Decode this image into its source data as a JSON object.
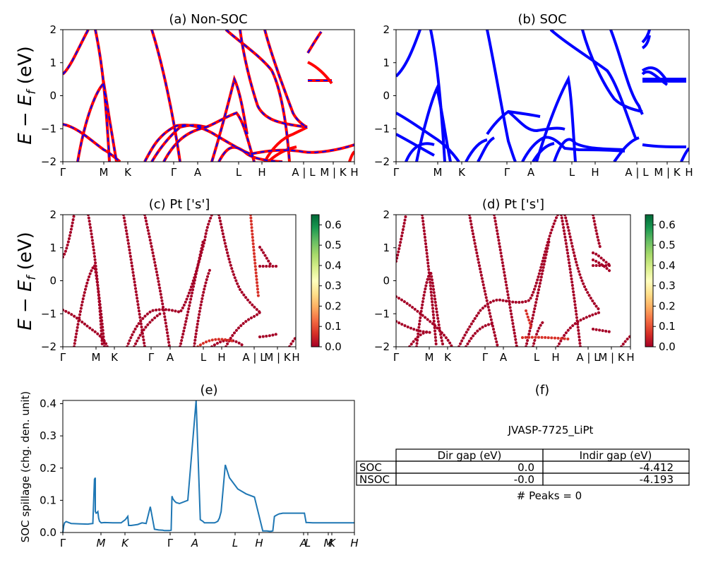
{
  "panels": {
    "a_title": "(a) Non-SOC",
    "b_title": "(b) SOC",
    "c_title": "(c)  Pt ['s']",
    "d_title": "(d) Pt ['s']",
    "e_title": "(e)",
    "f_title": "(f)",
    "band_ylabel": "E − E_f (eV)",
    "spillage_ylabel": "SOC spillage (chg. den. unit)"
  },
  "band_axes": {
    "ylim": [
      -2,
      2
    ],
    "yticks": [
      "2",
      "1",
      "0",
      "−1",
      "−2"
    ],
    "kpath_labels_ab": [
      "Γ",
      "M",
      "K",
      "Γ",
      "A",
      "L",
      "H",
      "A | L",
      "M | K",
      "H"
    ],
    "kpath_labels_cd": [
      "Γ",
      "M",
      "K",
      "Γ",
      "A",
      "L",
      "H",
      "A | L",
      "M | K",
      "H"
    ]
  },
  "colorbar": {
    "colormap": "RdYlGn",
    "ticks": [
      "0.6",
      "0.5",
      "0.4",
      "0.3",
      "0.2",
      "0.1",
      "0.0"
    ],
    "range": [
      0,
      0.65
    ]
  },
  "colors": {
    "nsoc_line": "#ff0000",
    "nsoc_dash": "#0000ff",
    "soc_line": "#0000ff",
    "spillage_line": "#1f77b4",
    "projection_low": "#a50026"
  },
  "chart_data": {
    "type": "line",
    "title": "(e)",
    "ylabel": "SOC spillage (chg. den. unit)",
    "ylim": [
      0,
      0.41
    ],
    "yticks": [
      "0.0",
      "0.1",
      "0.2",
      "0.3",
      "0.4"
    ],
    "kpath_labels": [
      "Γ",
      "M",
      "K",
      "Γ",
      "A",
      "L",
      "H",
      "A",
      "L",
      "M",
      "K",
      "H"
    ],
    "series": [
      {
        "x": [
          0,
          0.01,
          0.02,
          0.04,
          0.06,
          0.08,
          0.1,
          0.2,
          0.3,
          0.36,
          0.38,
          0.38,
          0.39,
          0.39,
          0.4,
          0.41,
          0.42,
          0.43,
          0.44,
          0.46,
          0.5,
          0.6,
          0.7,
          0.75,
          0.78,
          0.79,
          0.8,
          0.82,
          0.85,
          0.9,
          0.95,
          1.0,
          1.05,
          1.1,
          1.15,
          1.2,
          1.22,
          1.25,
          1.28,
          1.3,
          1.31,
          1.32,
          1.34,
          1.36,
          1.4,
          1.5,
          1.6,
          1.65,
          1.68,
          1.7,
          1.72,
          1.74,
          1.76,
          1.78,
          1.8,
          1.82,
          1.84,
          1.86,
          1.88,
          1.9,
          1.95,
          2.0,
          2.1,
          2.2,
          2.3,
          2.4,
          2.45,
          2.48,
          2.5,
          2.52,
          2.54,
          2.56,
          2.58,
          2.6,
          2.62,
          2.64,
          2.7,
          2.8,
          2.9,
          2.92,
          2.94,
          3.0,
          3.1,
          3.15,
          3.2,
          3.25,
          3.3,
          3.35,
          3.4,
          3.45,
          3.5
        ],
        "y": [
          0.0,
          0.02,
          0.03,
          0.034,
          0.032,
          0.03,
          0.028,
          0.027,
          0.026,
          0.028,
          0.165,
          0.165,
          0.17,
          0.065,
          0.06,
          0.062,
          0.065,
          0.045,
          0.035,
          0.03,
          0.031,
          0.03,
          0.03,
          0.04,
          0.05,
          0.022,
          0.022,
          0.022,
          0.023,
          0.025,
          0.03,
          0.028,
          0.08,
          0.01,
          0.008,
          0.007,
          0.006,
          0.006,
          0.006,
          0.007,
          0.113,
          0.105,
          0.098,
          0.093,
          0.09,
          0.1,
          0.41,
          0.04,
          0.035,
          0.03,
          0.03,
          0.03,
          0.03,
          0.03,
          0.03,
          0.03,
          0.032,
          0.035,
          0.045,
          0.065,
          0.21,
          0.17,
          0.135,
          0.12,
          0.11,
          0.005,
          0.005,
          0.004,
          0.004,
          0.005,
          0.05,
          0.053,
          0.056,
          0.058,
          0.059,
          0.06,
          0.06,
          0.06,
          0.06,
          0.031,
          0.031,
          0.03,
          0.03,
          0.03,
          0.03,
          0.03,
          0.03,
          0.03,
          0.03,
          0.03,
          0.03
        ]
      }
    ]
  },
  "table": {
    "caption": "JVASP-7725_LiPt",
    "columns": [
      "",
      "Dir gap (eV)",
      "Indir gap (eV)"
    ],
    "rows": [
      [
        "SOC",
        "0.0",
        "-4.412"
      ],
      [
        "NSOC",
        "-0.0",
        "-4.193"
      ]
    ],
    "peaks": "# Peaks = 0"
  }
}
